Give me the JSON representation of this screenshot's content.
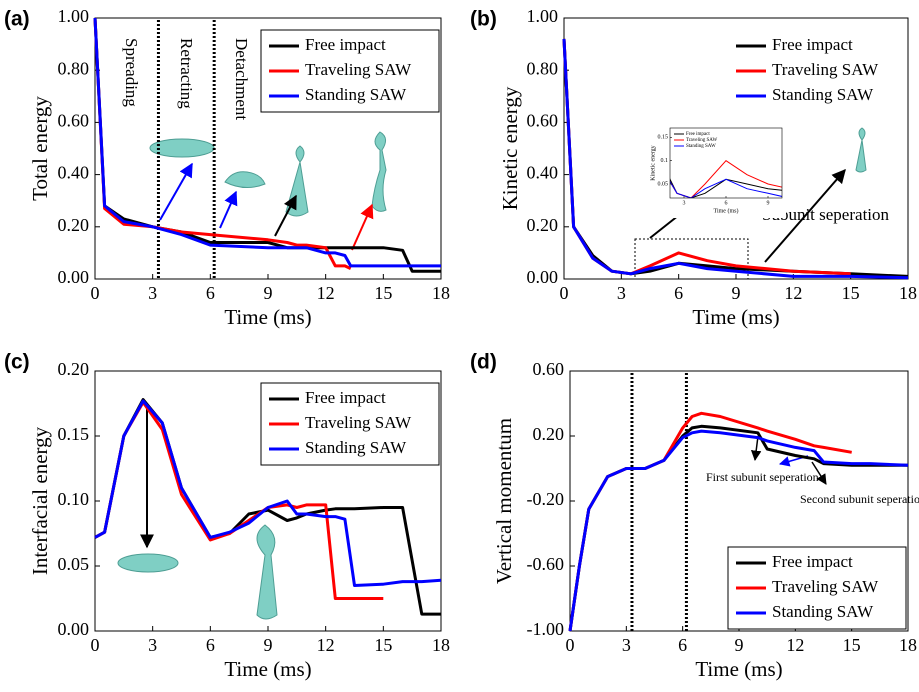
{
  "chart_data": [
    {
      "type": "line",
      "label": "(a)",
      "x_label": "Time (ms)",
      "y_label": "Total energy",
      "xlim": [
        0,
        18
      ],
      "ylim": [
        0,
        1
      ],
      "xticks": [
        0,
        3,
        6,
        9,
        12,
        15,
        18
      ],
      "yticks": [
        {
          "value": 0,
          "label": "0.00"
        },
        {
          "value": 0.2,
          "label": "0.20"
        },
        {
          "value": 0.4,
          "label": "0.40"
        },
        {
          "value": 0.6,
          "label": "0.60"
        },
        {
          "value": 0.8,
          "label": "0.80"
        },
        {
          "value": 1,
          "label": "1.00"
        }
      ],
      "legend": "upper right",
      "legend_frame": true,
      "vlines": [
        3.3,
        6.2
      ],
      "annotations": [
        "Spreading",
        "Retracting",
        "Detachment"
      ],
      "x": [
        0,
        0.5,
        1.5,
        3,
        4.5,
        6,
        9,
        10,
        10.5,
        11,
        12,
        12.5,
        13,
        13.3,
        15,
        16,
        16.5,
        18
      ],
      "series": [
        {
          "name": "Free impact",
          "color": "#000000",
          "values": [
            1.0,
            0.28,
            0.23,
            0.2,
            0.18,
            0.14,
            0.14,
            0.12,
            0.12,
            0.12,
            0.12,
            0.12,
            0.12,
            0.12,
            0.12,
            0.11,
            0.03,
            0.03
          ]
        },
        {
          "name": "Traveling SAW",
          "color": "#ff0000",
          "values": [
            1.0,
            0.27,
            0.21,
            0.2,
            0.18,
            0.17,
            0.15,
            0.14,
            0.13,
            0.13,
            0.12,
            0.05,
            0.05,
            0.04,
            null,
            null,
            null,
            null
          ]
        },
        {
          "name": "Standing SAW",
          "color": "#0000ff",
          "values": [
            1.0,
            0.28,
            0.22,
            0.2,
            0.17,
            0.13,
            0.12,
            0.12,
            0.12,
            0.12,
            0.1,
            0.1,
            0.09,
            0.05,
            0.05,
            0.05,
            0.05,
            0.05
          ]
        }
      ]
    },
    {
      "type": "line",
      "label": "(b)",
      "x_label": "Time (ms)",
      "y_label": "Kinetic energy",
      "xlim": [
        0,
        18
      ],
      "ylim": [
        0,
        1
      ],
      "xticks": [
        0,
        3,
        6,
        9,
        12,
        15,
        18
      ],
      "yticks": [
        {
          "value": 0,
          "label": "0.00"
        },
        {
          "value": 0.2,
          "label": "0.20"
        },
        {
          "value": 0.4,
          "label": "0.40"
        },
        {
          "value": 0.6,
          "label": "0.60"
        },
        {
          "value": 0.8,
          "label": "0.80"
        },
        {
          "value": 1,
          "label": "1.00"
        }
      ],
      "legend": "upper right",
      "legend_frame": false,
      "annotations": [
        "Subunit seperation"
      ],
      "inset": {
        "xlim": [
          2,
          10
        ],
        "ylim": [
          0.02,
          0.17
        ],
        "xticks": [
          3,
          6,
          9
        ],
        "yticks": [
          0.05,
          0.1,
          0.15
        ]
      },
      "x": [
        0,
        0.5,
        1.5,
        2.5,
        3.5,
        4.5,
        6,
        7.5,
        9,
        12,
        15,
        18
      ],
      "series": [
        {
          "name": "Free impact",
          "color": "#000000",
          "values": [
            0.92,
            0.2,
            0.09,
            0.03,
            0.02,
            0.03,
            0.06,
            0.05,
            0.04,
            0.03,
            0.02,
            0.01
          ]
        },
        {
          "name": "Traveling SAW",
          "color": "#ff0000",
          "values": [
            0.92,
            0.2,
            0.08,
            0.03,
            0.02,
            0.05,
            0.1,
            0.07,
            0.05,
            0.03,
            0.02,
            null
          ]
        },
        {
          "name": "Standing SAW",
          "color": "#0000ff",
          "values": [
            0.92,
            0.2,
            0.08,
            0.03,
            0.02,
            0.04,
            0.06,
            0.04,
            0.03,
            0.01,
            0.01,
            0.005
          ]
        }
      ]
    },
    {
      "type": "line",
      "label": "(c)",
      "x_label": "Time (ms)",
      "y_label": "Interfacial energy",
      "xlim": [
        0,
        18
      ],
      "ylim": [
        0,
        0.2
      ],
      "xticks": [
        0,
        3,
        6,
        9,
        12,
        15,
        18
      ],
      "yticks": [
        {
          "value": 0,
          "label": "0.00"
        },
        0.05,
        {
          "value": 0.1,
          "label": "0.10"
        },
        0.15,
        {
          "value": 0.2,
          "label": "0.20"
        }
      ],
      "legend": "upper right",
      "legend_frame": true,
      "x": [
        0,
        0.5,
        1.5,
        2.5,
        3.5,
        4.5,
        6,
        7,
        8,
        9,
        10,
        10.5,
        11,
        12,
        12.5,
        13,
        13.5,
        15,
        16,
        17,
        18
      ],
      "series": [
        {
          "name": "Free impact",
          "color": "#000000",
          "values": [
            0.072,
            0.076,
            0.15,
            0.178,
            0.16,
            0.11,
            0.072,
            0.075,
            0.09,
            0.093,
            0.085,
            0.087,
            0.09,
            0.093,
            0.094,
            0.094,
            0.094,
            0.095,
            0.095,
            0.013,
            0.013
          ]
        },
        {
          "name": "Traveling SAW",
          "color": "#ff0000",
          "values": [
            0.072,
            0.076,
            0.15,
            0.176,
            0.155,
            0.105,
            0.07,
            0.075,
            0.085,
            0.095,
            0.097,
            0.095,
            0.097,
            0.097,
            0.025,
            0.025,
            0.025,
            0.025,
            null,
            null,
            null
          ]
        },
        {
          "name": "Standing SAW",
          "color": "#0000ff",
          "values": [
            0.072,
            0.076,
            0.15,
            0.177,
            0.16,
            0.11,
            0.072,
            0.076,
            0.083,
            0.095,
            0.1,
            0.09,
            0.09,
            0.088,
            0.088,
            0.086,
            0.035,
            0.036,
            0.038,
            0.038,
            0.039
          ]
        }
      ]
    },
    {
      "type": "line",
      "label": "(d)",
      "x_label": "Time (ms)",
      "y_label": "Vertical momentum",
      "xlim": [
        0,
        18
      ],
      "ylim": [
        -1,
        0.6
      ],
      "xticks": [
        0,
        3,
        6,
        9,
        12,
        15,
        18
      ],
      "yticks": [
        {
          "value": -1,
          "label": "-1.00"
        },
        {
          "value": -0.6,
          "label": "-0.60"
        },
        {
          "value": -0.2,
          "label": "-0.20"
        },
        {
          "value": 0.2,
          "label": "0.20"
        },
        {
          "value": 0.6,
          "label": "0.60"
        }
      ],
      "legend": "lower right",
      "legend_frame": true,
      "vlines": [
        3.3,
        6.2
      ],
      "annotations": [
        "First subunit seperation",
        "Second subunit seperation"
      ],
      "x": [
        0,
        0.5,
        1,
        2,
        3,
        4,
        5,
        6,
        6.5,
        7,
        8,
        10,
        10.5,
        12,
        13,
        13.5,
        15,
        16,
        18
      ],
      "series": [
        {
          "name": "Free impact",
          "color": "#000000",
          "values": [
            -1.0,
            -0.6,
            -0.25,
            -0.05,
            0.0,
            0.0,
            0.05,
            0.2,
            0.25,
            0.26,
            0.25,
            0.22,
            0.12,
            0.08,
            0.06,
            0.03,
            0.02,
            0.02,
            0.02
          ]
        },
        {
          "name": "Traveling SAW",
          "color": "#ff0000",
          "values": [
            -1.0,
            -0.6,
            -0.25,
            -0.05,
            0.0,
            0.0,
            0.05,
            0.25,
            0.32,
            0.34,
            0.32,
            0.25,
            0.23,
            0.18,
            0.14,
            0.13,
            0.1,
            null,
            null
          ]
        },
        {
          "name": "Standing SAW",
          "color": "#0000ff",
          "values": [
            -1.0,
            -0.6,
            -0.25,
            -0.05,
            0.0,
            0.0,
            0.05,
            0.19,
            0.22,
            0.23,
            0.22,
            0.19,
            0.17,
            0.13,
            0.11,
            0.04,
            0.03,
            0.03,
            0.02
          ]
        }
      ]
    }
  ]
}
